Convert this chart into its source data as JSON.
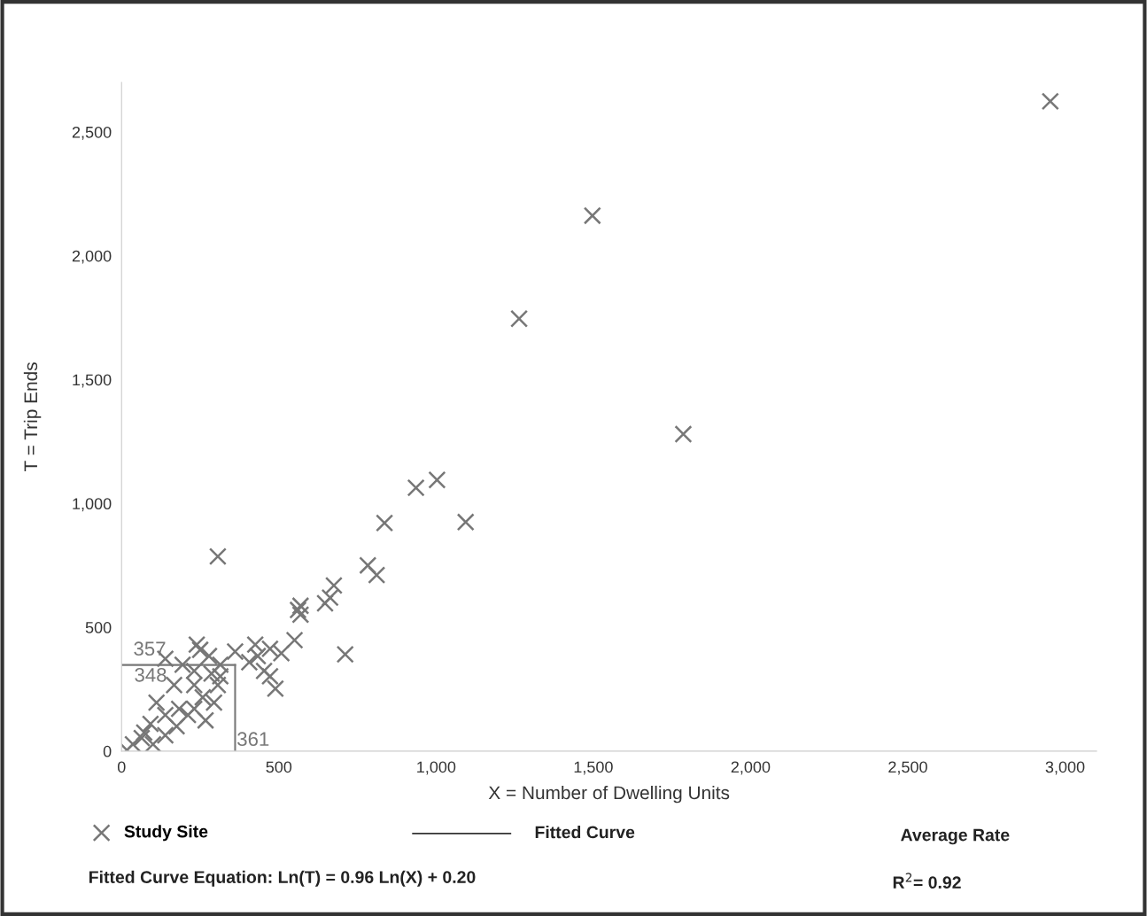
{
  "chart_data": {
    "type": "scatter",
    "xlabel": "X = Number of Dwelling Units",
    "ylabel": "T = Trip Ends",
    "xlim": [
      0,
      3100
    ],
    "ylim": [
      0,
      2700
    ],
    "xticks": [
      0,
      500,
      {
        "value": 1000,
        "label": "1,000"
      },
      {
        "value": 1500,
        "label": "1,500"
      },
      {
        "value": 2000,
        "label": "2,000"
      },
      {
        "value": 2500,
        "label": "2,500"
      },
      {
        "value": 3000,
        "label": "3,000"
      }
    ],
    "yticks": [
      0,
      500,
      {
        "value": 1000,
        "label": "1,000"
      },
      {
        "value": 1500,
        "label": "1,500"
      },
      {
        "value": 2000,
        "label": "2,000"
      },
      {
        "value": 2500,
        "label": "2,500"
      }
    ],
    "grid": false,
    "marker": "cross",
    "legend": "bottom left",
    "series": [
      {
        "name": "Study Site",
        "color": "#777777",
        "x": [
          2953,
          1497,
          1264,
          1786,
          936,
          1003,
          836,
          1094,
          306,
          783,
          811,
          675,
          647,
          569,
          569,
          550,
          711,
          361,
          425,
          433,
          472,
          508,
          406,
          453,
          472,
          489,
          239,
          278,
          139,
          194,
          231,
          286,
          306,
          167,
          258,
          294,
          111,
          211,
          267,
          175,
          92,
          139,
          64,
          36,
          100,
          17,
          183,
          139,
          231,
          314,
          314,
          250,
          231,
          72,
          663,
          561
        ],
        "values": [
          2624,
          2162,
          1746,
          1280,
          1063,
          1095,
          921,
          925,
          786,
          750,
          711,
          669,
          597,
          587,
          551,
          448,
          391,
          402,
          430,
          384,
          413,
          395,
          359,
          324,
          302,
          252,
          430,
          384,
          373,
          349,
          324,
          313,
          267,
          267,
          217,
          196,
          196,
          146,
          124,
          100,
          110,
          64,
          53,
          28,
          28,
          4,
          171,
          146,
          171,
          349,
          302,
          409,
          267,
          75,
          620,
          570
        ]
      }
    ],
    "ref_lines": [
      {
        "axis": "x",
        "value": 361,
        "label": "361",
        "color": "#777777"
      },
      {
        "axis": "y",
        "value": 348,
        "label": "348",
        "color": "#777777"
      }
    ],
    "annotations": [
      "357",
      "Fitted Curve",
      "Average Rate",
      "Fitted Curve Equation: Ln(T) = 0.96 Ln(X) + 0.20",
      "R$^{2}$= 0.92"
    ]
  }
}
